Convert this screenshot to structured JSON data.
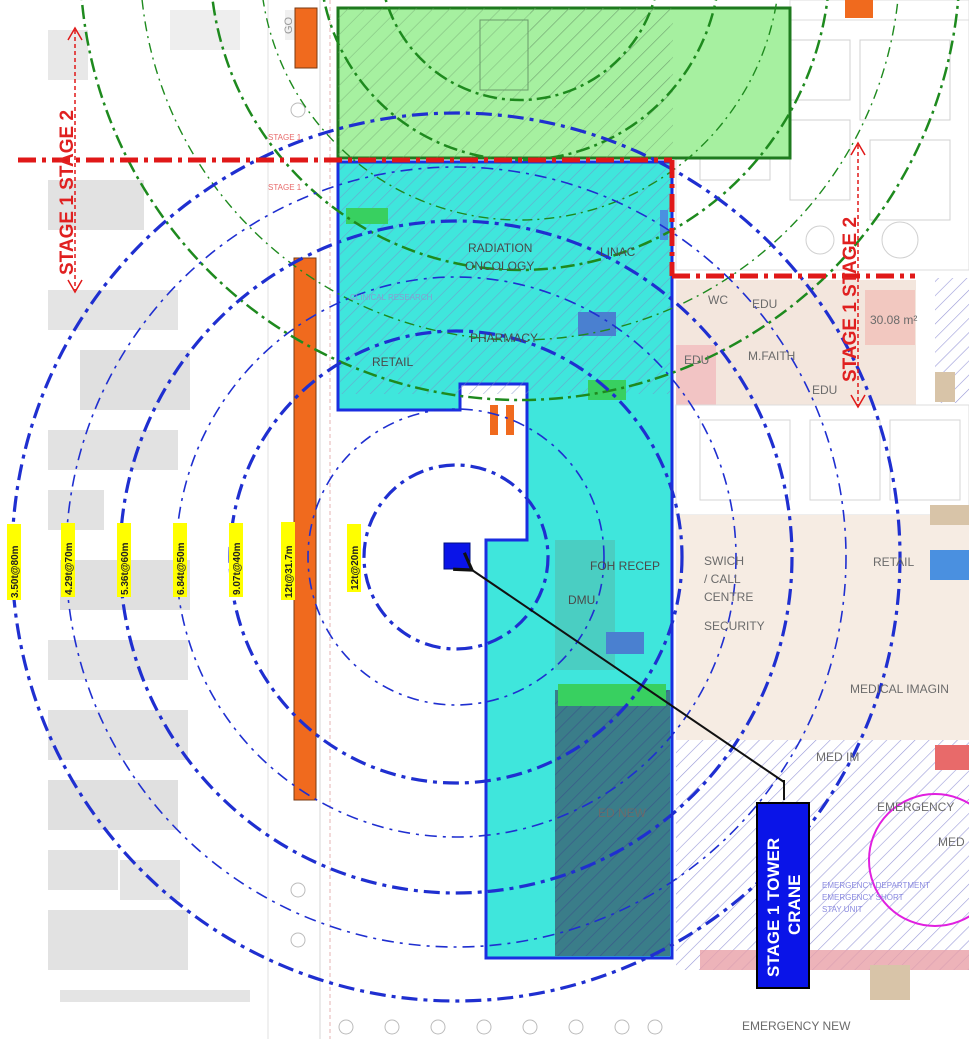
{
  "stage_labels": {
    "left": "STAGE 1  STAGE 2",
    "right": "STAGE 1  STAGE 2",
    "small_1": "STAGE 1",
    "small_2": "STAGE 1"
  },
  "crane": {
    "line1": "STAGE 1 TOWER",
    "line2": "CRANE"
  },
  "radius_labels": [
    "3.50t@80m",
    "4.29t@70m",
    "5.36t@60m",
    "6.84t@50m",
    "9.07t@40m",
    "12t@31.7m",
    "12t@20m"
  ],
  "rooms": {
    "radiation_oncology_1": "RADIATION",
    "radiation_oncology_2": "ONCOLOGY",
    "pharmacy": "PHARMACY",
    "retail_left": "RETAIL",
    "linac": "LINAC",
    "wc": "WC",
    "edu_1": "EDU",
    "edu_2": "EDU",
    "edu_3": "EDU",
    "m_faith": "M.FAITH",
    "area_note": "30.08 m²",
    "foh_recep": "FOH RECEP",
    "dmu": "DMU",
    "switch_1": "SWICH",
    "switch_2": "/ CALL",
    "switch_3": "CENTRE",
    "security": "SECURITY",
    "retail_right": "RETAIL",
    "medical_imaging": "MEDICAL IMAGIN",
    "med_im": "MED IM",
    "emergency": "EMERGENCY",
    "ed_new": "ED NEW",
    "emergency_new": "EMERGENCY NEW",
    "med": "MED",
    "faded_1": "CLINICAL RESEARCH",
    "faded_2": "EMERGENCY DEPARTMENT",
    "faded_3": "EMERGENCY SHORT",
    "faded_4": "STAY UNIT",
    "grid_left_top": "GO"
  },
  "colors": {
    "stage1_zone": "#3fe6dc",
    "stage2_zone": "#a6f0a0",
    "crane_radius": "#1f2fd0",
    "stage2_crane_radius": "#1e8a1e",
    "stage_line": "#e01818",
    "exclusion_bar": "#f06a1e",
    "crane_marker": "#0a14e8"
  }
}
